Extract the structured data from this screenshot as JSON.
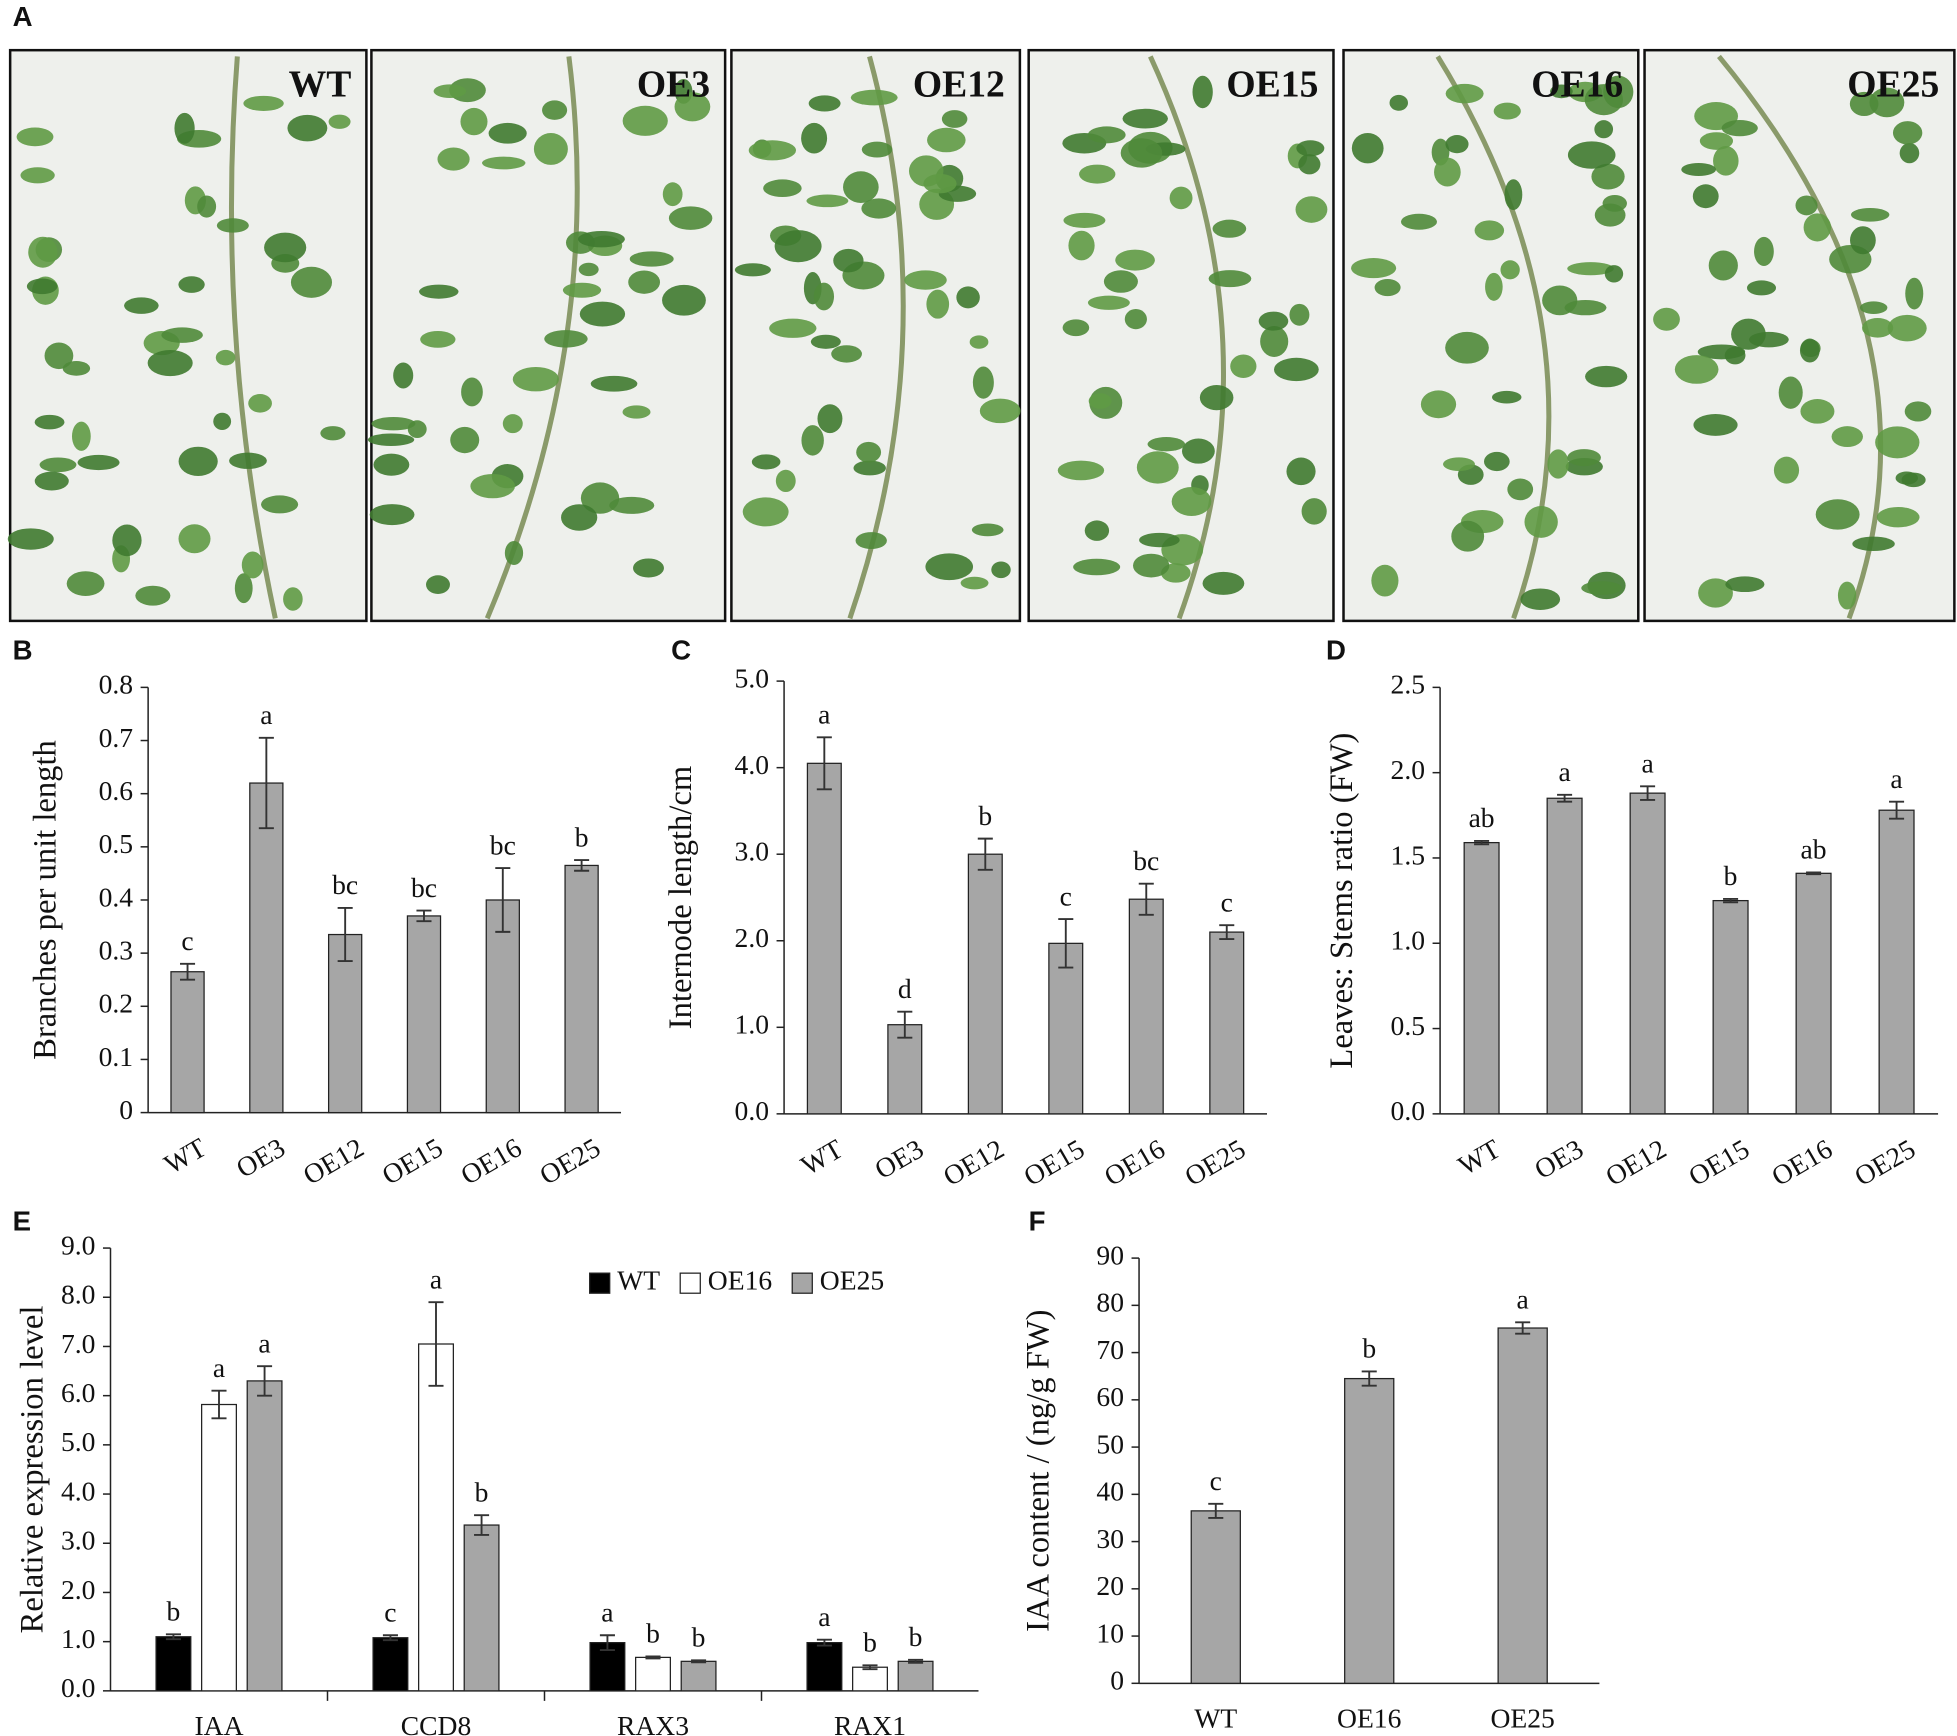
{
  "photo_panel": {
    "panel_label": "A",
    "labels": [
      "WT",
      "OE3",
      "OE12",
      "OE15",
      "OE16",
      "OE25"
    ]
  },
  "chart_data": [
    {
      "type": "bar",
      "panel_label": "B",
      "ylabel": "Branches per unit length",
      "categories": [
        "WT",
        "OE3",
        "OE12",
        "OE15",
        "OE16",
        "OE25"
      ],
      "values": [
        0.265,
        0.62,
        0.335,
        0.37,
        0.4,
        0.465
      ],
      "errors": [
        0.015,
        0.085,
        0.05,
        0.01,
        0.06,
        0.01
      ],
      "annotations": [
        "c",
        "a",
        "bc",
        "bc",
        "bc",
        "b"
      ],
      "color": "#a6a6a6",
      "ylim": [
        0,
        0.8
      ],
      "yticks": [
        0,
        0.1,
        0.2,
        0.3,
        0.4,
        0.5,
        0.6,
        0.7,
        0.8
      ]
    },
    {
      "type": "bar",
      "panel_label": "C",
      "ylabel": "Internode length/cm",
      "categories": [
        "WT",
        "OE3",
        "OE12",
        "OE15",
        "OE16",
        "OE25"
      ],
      "values": [
        4.05,
        1.03,
        3.0,
        1.97,
        2.48,
        2.1
      ],
      "errors": [
        0.3,
        0.15,
        0.18,
        0.28,
        0.18,
        0.08
      ],
      "annotations": [
        "a",
        "d",
        "b",
        "c",
        "bc",
        "c"
      ],
      "color": "#a6a6a6",
      "ylim": [
        0,
        5
      ],
      "yticks": [
        {
          "value": 0,
          "label": "0.0"
        },
        {
          "value": 1,
          "label": "1.0"
        },
        {
          "value": 2,
          "label": "2.0"
        },
        {
          "value": 3,
          "label": "3.0"
        },
        {
          "value": 4,
          "label": "4.0"
        },
        {
          "value": 5,
          "label": "5.0"
        }
      ]
    },
    {
      "type": "bar",
      "panel_label": "D",
      "ylabel": "Leaves: Stems ratio (FW)",
      "categories": [
        "WT",
        "OE3",
        "OE12",
        "OE15",
        "OE16",
        "OE25"
      ],
      "values": [
        1.59,
        1.85,
        1.88,
        1.25,
        1.41,
        1.78
      ],
      "errors": [
        0.01,
        0.02,
        0.04,
        0.01,
        0.005,
        0.05
      ],
      "annotations": [
        "ab",
        "a",
        "a",
        "b",
        "ab",
        "a"
      ],
      "color": "#a6a6a6",
      "ylim": [
        0,
        2.5
      ],
      "yticks": [
        {
          "value": 0,
          "label": "0.0"
        },
        0.5,
        {
          "value": 1,
          "label": "1.0"
        },
        1.5,
        {
          "value": 2,
          "label": "2.0"
        },
        2.5
      ]
    },
    {
      "type": "bar",
      "panel_label": "E",
      "ylabel": "Relative expression level",
      "categories": [
        "IAA",
        "CCD8",
        "RAX3",
        "RAX1"
      ],
      "legend": "top-right",
      "series": [
        {
          "name": "WT",
          "color": "#000000",
          "values": [
            1.1,
            1.08,
            0.98,
            0.98
          ],
          "errors": [
            0.05,
            0.05,
            0.15,
            0.06
          ],
          "annotations": [
            "b",
            "c",
            "a",
            "a"
          ]
        },
        {
          "name": "OE16",
          "color": "#ffffff",
          "values": [
            5.82,
            7.05,
            0.68,
            0.48
          ],
          "errors": [
            0.28,
            0.85,
            0.02,
            0.04
          ],
          "annotations": [
            "a",
            "a",
            "b",
            "b"
          ]
        },
        {
          "name": "OE25",
          "color": "#a6a6a6",
          "values": [
            6.3,
            3.37,
            0.6,
            0.6
          ],
          "errors": [
            0.3,
            0.2,
            0.02,
            0.03
          ],
          "annotations": [
            "a",
            "b",
            "b",
            "b"
          ]
        }
      ],
      "ylim": [
        0,
        9
      ],
      "yticks": [
        {
          "value": 0,
          "label": "0.0"
        },
        {
          "value": 1,
          "label": "1.0"
        },
        {
          "value": 2,
          "label": "2.0"
        },
        {
          "value": 3,
          "label": "3.0"
        },
        {
          "value": 4,
          "label": "4.0"
        },
        {
          "value": 5,
          "label": "5.0"
        },
        {
          "value": 6,
          "label": "6.0"
        },
        {
          "value": 7,
          "label": "7.0"
        },
        {
          "value": 8,
          "label": "8.0"
        },
        {
          "value": 9,
          "label": "9.0"
        }
      ]
    },
    {
      "type": "bar",
      "panel_label": "F",
      "ylabel": "IAA content / (ng/g FW)",
      "categories": [
        "WT",
        "OE16",
        "OE25"
      ],
      "values": [
        36.5,
        64.5,
        75.2
      ],
      "errors": [
        1.5,
        1.5,
        1.2
      ],
      "annotations": [
        "c",
        "b",
        "a"
      ],
      "color": "#a6a6a6",
      "ylim": [
        0,
        90
      ],
      "yticks": [
        0,
        10,
        20,
        30,
        40,
        50,
        60,
        70,
        80,
        90
      ]
    }
  ]
}
